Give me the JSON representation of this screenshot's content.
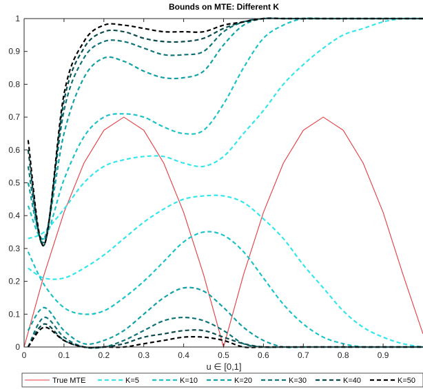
{
  "chart_data": {
    "type": "line",
    "title": "Bounds on MTE: Different K",
    "xlabel": "u ∈ [0,1]",
    "ylabel": "",
    "xlim": [
      0,
      1
    ],
    "ylim": [
      0,
      1
    ],
    "xticks": [
      "0",
      "0.1",
      "0.2",
      "0.3",
      "0.4",
      "0.5",
      "0.6",
      "0.7",
      "0.8",
      "0.9"
    ],
    "yticks": [
      "0",
      "0.1",
      "0.2",
      "0.3",
      "0.4",
      "0.5",
      "0.6",
      "0.7",
      "0.8",
      "0.9",
      "1"
    ],
    "grid": false,
    "legend_position": "bottom",
    "series": [
      {
        "name": "True MTE",
        "color": "#e8393f",
        "style": "solid",
        "points": [
          [
            0.0,
            0.0
          ],
          [
            0.05,
            0.22
          ],
          [
            0.1,
            0.41
          ],
          [
            0.15,
            0.56
          ],
          [
            0.2,
            0.66
          ],
          [
            0.25,
            0.7
          ],
          [
            0.3,
            0.66
          ],
          [
            0.35,
            0.56
          ],
          [
            0.4,
            0.41
          ],
          [
            0.45,
            0.22
          ],
          [
            0.5,
            0.0
          ],
          [
            0.55,
            0.22
          ],
          [
            0.6,
            0.41
          ],
          [
            0.65,
            0.56
          ],
          [
            0.7,
            0.66
          ],
          [
            0.75,
            0.7
          ],
          [
            0.8,
            0.66
          ],
          [
            0.85,
            0.56
          ],
          [
            0.9,
            0.41
          ],
          [
            0.95,
            0.22
          ],
          [
            1.0,
            0.04
          ]
        ]
      },
      {
        "name": "K=5",
        "color": "#33e6ec",
        "style": "dashed",
        "upper": [
          [
            0.01,
            0.24
          ],
          [
            0.05,
            0.21
          ],
          [
            0.1,
            0.21
          ],
          [
            0.15,
            0.24
          ],
          [
            0.2,
            0.28
          ],
          [
            0.25,
            0.33
          ],
          [
            0.3,
            0.38
          ],
          [
            0.35,
            0.42
          ],
          [
            0.4,
            0.45
          ],
          [
            0.45,
            0.46
          ],
          [
            0.5,
            0.46
          ],
          [
            0.55,
            0.44
          ],
          [
            0.6,
            0.39
          ],
          [
            0.65,
            0.33
          ],
          [
            0.7,
            0.25
          ],
          [
            0.75,
            0.18
          ],
          [
            0.8,
            0.11
          ],
          [
            0.85,
            0.06
          ],
          [
            0.9,
            0.03
          ],
          [
            0.95,
            0.01
          ],
          [
            1.0,
            0.0
          ]
        ],
        "lower": [
          [
            0.01,
            0.33
          ],
          [
            0.05,
            0.35
          ],
          [
            0.1,
            0.42
          ],
          [
            0.15,
            0.5
          ],
          [
            0.2,
            0.55
          ],
          [
            0.25,
            0.57
          ],
          [
            0.3,
            0.58
          ],
          [
            0.35,
            0.58
          ],
          [
            0.4,
            0.56
          ],
          [
            0.45,
            0.55
          ],
          [
            0.5,
            0.58
          ],
          [
            0.55,
            0.65
          ],
          [
            0.6,
            0.72
          ],
          [
            0.65,
            0.8
          ],
          [
            0.7,
            0.86
          ],
          [
            0.75,
            0.91
          ],
          [
            0.8,
            0.95
          ],
          [
            0.85,
            0.97
          ],
          [
            0.9,
            0.99
          ],
          [
            0.95,
            1.0
          ],
          [
            1.0,
            1.0
          ]
        ]
      },
      {
        "name": "K=10",
        "color": "#1bc3c8",
        "style": "dashed",
        "upper": [
          [
            0.01,
            0.29
          ],
          [
            0.05,
            0.19
          ],
          [
            0.1,
            0.12
          ],
          [
            0.15,
            0.1
          ],
          [
            0.2,
            0.11
          ],
          [
            0.25,
            0.15
          ],
          [
            0.3,
            0.2
          ],
          [
            0.35,
            0.26
          ],
          [
            0.4,
            0.32
          ],
          [
            0.45,
            0.35
          ],
          [
            0.5,
            0.34
          ],
          [
            0.55,
            0.29
          ],
          [
            0.6,
            0.21
          ],
          [
            0.65,
            0.13
          ],
          [
            0.7,
            0.07
          ],
          [
            0.75,
            0.03
          ],
          [
            0.8,
            0.01
          ],
          [
            0.85,
            0.0
          ],
          [
            0.9,
            0.0
          ],
          [
            0.95,
            0.0
          ],
          [
            1.0,
            0.0
          ]
        ],
        "lower": [
          [
            0.01,
            0.43
          ],
          [
            0.05,
            0.33
          ],
          [
            0.1,
            0.51
          ],
          [
            0.15,
            0.64
          ],
          [
            0.2,
            0.7
          ],
          [
            0.25,
            0.71
          ],
          [
            0.3,
            0.7
          ],
          [
            0.35,
            0.67
          ],
          [
            0.4,
            0.65
          ],
          [
            0.45,
            0.66
          ],
          [
            0.5,
            0.74
          ],
          [
            0.55,
            0.85
          ],
          [
            0.6,
            0.94
          ],
          [
            0.65,
            0.98
          ],
          [
            0.7,
            1.0
          ],
          [
            0.75,
            1.0
          ],
          [
            0.8,
            1.0
          ],
          [
            0.85,
            1.0
          ],
          [
            0.9,
            1.0
          ],
          [
            0.95,
            1.0
          ],
          [
            1.0,
            1.0
          ]
        ]
      },
      {
        "name": "K=20",
        "color": "#12a0a4",
        "style": "dashed",
        "upper": [
          [
            0.01,
            0.05
          ],
          [
            0.05,
            0.12
          ],
          [
            0.1,
            0.05
          ],
          [
            0.15,
            0.01
          ],
          [
            0.2,
            0.02
          ],
          [
            0.25,
            0.05
          ],
          [
            0.3,
            0.1
          ],
          [
            0.35,
            0.15
          ],
          [
            0.4,
            0.18
          ],
          [
            0.45,
            0.17
          ],
          [
            0.5,
            0.12
          ],
          [
            0.55,
            0.06
          ],
          [
            0.6,
            0.02
          ],
          [
            0.65,
            0.0
          ],
          [
            0.7,
            0.0
          ],
          [
            0.75,
            0.0
          ],
          [
            0.8,
            0.0
          ],
          [
            0.85,
            0.0
          ],
          [
            0.9,
            0.0
          ],
          [
            0.95,
            0.0
          ],
          [
            1.0,
            0.0
          ]
        ],
        "lower": [
          [
            0.01,
            0.5
          ],
          [
            0.05,
            0.33
          ],
          [
            0.1,
            0.65
          ],
          [
            0.15,
            0.82
          ],
          [
            0.2,
            0.88
          ],
          [
            0.25,
            0.87
          ],
          [
            0.3,
            0.84
          ],
          [
            0.35,
            0.82
          ],
          [
            0.4,
            0.82
          ],
          [
            0.45,
            0.84
          ],
          [
            0.5,
            0.92
          ],
          [
            0.55,
            0.98
          ],
          [
            0.6,
            1.0
          ],
          [
            0.65,
            1.0
          ],
          [
            0.7,
            1.0
          ],
          [
            0.75,
            1.0
          ],
          [
            0.8,
            1.0
          ],
          [
            0.85,
            1.0
          ],
          [
            0.9,
            1.0
          ],
          [
            0.95,
            1.0
          ],
          [
            1.0,
            1.0
          ]
        ]
      },
      {
        "name": "K=30",
        "color": "#0e7377",
        "style": "dashed",
        "upper": [
          [
            0.01,
            0.0
          ],
          [
            0.05,
            0.09
          ],
          [
            0.1,
            0.03
          ],
          [
            0.15,
            0.0
          ],
          [
            0.2,
            0.0
          ],
          [
            0.25,
            0.02
          ],
          [
            0.3,
            0.05
          ],
          [
            0.35,
            0.08
          ],
          [
            0.4,
            0.09
          ],
          [
            0.45,
            0.08
          ],
          [
            0.5,
            0.05
          ],
          [
            0.55,
            0.01
          ],
          [
            0.6,
            0.0
          ],
          [
            0.65,
            0.0
          ],
          [
            0.7,
            0.0
          ],
          [
            0.75,
            0.0
          ],
          [
            0.8,
            0.0
          ],
          [
            0.85,
            0.0
          ],
          [
            0.9,
            0.0
          ],
          [
            0.95,
            0.0
          ],
          [
            1.0,
            0.0
          ]
        ],
        "lower": [
          [
            0.01,
            0.55
          ],
          [
            0.05,
            0.32
          ],
          [
            0.1,
            0.72
          ],
          [
            0.15,
            0.88
          ],
          [
            0.2,
            0.93
          ],
          [
            0.25,
            0.93
          ],
          [
            0.3,
            0.91
          ],
          [
            0.35,
            0.89
          ],
          [
            0.4,
            0.89
          ],
          [
            0.45,
            0.9
          ],
          [
            0.5,
            0.96
          ],
          [
            0.55,
            0.99
          ],
          [
            0.6,
            1.0
          ],
          [
            0.65,
            1.0
          ],
          [
            0.7,
            1.0
          ],
          [
            0.75,
            1.0
          ],
          [
            0.8,
            1.0
          ],
          [
            0.85,
            1.0
          ],
          [
            0.9,
            1.0
          ],
          [
            0.95,
            1.0
          ],
          [
            1.0,
            1.0
          ]
        ]
      },
      {
        "name": "K=40",
        "color": "#0b4a4c",
        "style": "dashed",
        "upper": [
          [
            0.01,
            0.0
          ],
          [
            0.05,
            0.07
          ],
          [
            0.1,
            0.02
          ],
          [
            0.15,
            0.0
          ],
          [
            0.2,
            0.0
          ],
          [
            0.25,
            0.01
          ],
          [
            0.3,
            0.03
          ],
          [
            0.35,
            0.04
          ],
          [
            0.4,
            0.05
          ],
          [
            0.45,
            0.05
          ],
          [
            0.5,
            0.03
          ],
          [
            0.55,
            0.01
          ],
          [
            0.6,
            0.0
          ],
          [
            0.65,
            0.0
          ],
          [
            0.7,
            0.0
          ],
          [
            0.75,
            0.0
          ],
          [
            0.8,
            0.0
          ],
          [
            0.85,
            0.0
          ],
          [
            0.9,
            0.0
          ],
          [
            0.95,
            0.0
          ],
          [
            1.0,
            0.0
          ]
        ],
        "lower": [
          [
            0.01,
            0.6
          ],
          [
            0.05,
            0.31
          ],
          [
            0.1,
            0.75
          ],
          [
            0.15,
            0.91
          ],
          [
            0.2,
            0.96
          ],
          [
            0.25,
            0.96
          ],
          [
            0.3,
            0.94
          ],
          [
            0.35,
            0.93
          ],
          [
            0.4,
            0.93
          ],
          [
            0.45,
            0.94
          ],
          [
            0.5,
            0.97
          ],
          [
            0.55,
            0.99
          ],
          [
            0.6,
            1.0
          ],
          [
            0.65,
            1.0
          ],
          [
            0.7,
            1.0
          ],
          [
            0.75,
            1.0
          ],
          [
            0.8,
            1.0
          ],
          [
            0.85,
            1.0
          ],
          [
            0.9,
            1.0
          ],
          [
            0.95,
            1.0
          ],
          [
            1.0,
            1.0
          ]
        ]
      },
      {
        "name": "K=50",
        "color": "#000000",
        "style": "dashed",
        "upper": [
          [
            0.01,
            0.0
          ],
          [
            0.05,
            0.06
          ],
          [
            0.1,
            0.02
          ],
          [
            0.15,
            0.0
          ],
          [
            0.2,
            0.0
          ],
          [
            0.25,
            0.0
          ],
          [
            0.3,
            0.01
          ],
          [
            0.35,
            0.02
          ],
          [
            0.4,
            0.03
          ],
          [
            0.45,
            0.03
          ],
          [
            0.5,
            0.02
          ],
          [
            0.55,
            0.0
          ],
          [
            0.6,
            0.0
          ],
          [
            0.65,
            0.0
          ],
          [
            0.7,
            0.0
          ],
          [
            0.75,
            0.0
          ],
          [
            0.8,
            0.0
          ],
          [
            0.85,
            0.0
          ],
          [
            0.9,
            0.0
          ],
          [
            0.95,
            0.0
          ],
          [
            1.0,
            0.0
          ]
        ],
        "lower": [
          [
            0.01,
            0.63
          ],
          [
            0.05,
            0.31
          ],
          [
            0.1,
            0.77
          ],
          [
            0.15,
            0.93
          ],
          [
            0.2,
            0.98
          ],
          [
            0.25,
            0.98
          ],
          [
            0.3,
            0.97
          ],
          [
            0.35,
            0.96
          ],
          [
            0.4,
            0.96
          ],
          [
            0.45,
            0.96
          ],
          [
            0.5,
            0.98
          ],
          [
            0.55,
            0.99
          ],
          [
            0.6,
            1.0
          ],
          [
            0.65,
            1.0
          ],
          [
            0.7,
            1.0
          ],
          [
            0.75,
            1.0
          ],
          [
            0.8,
            1.0
          ],
          [
            0.85,
            1.0
          ],
          [
            0.9,
            1.0
          ],
          [
            0.95,
            1.0
          ],
          [
            1.0,
            1.0
          ]
        ]
      }
    ]
  }
}
